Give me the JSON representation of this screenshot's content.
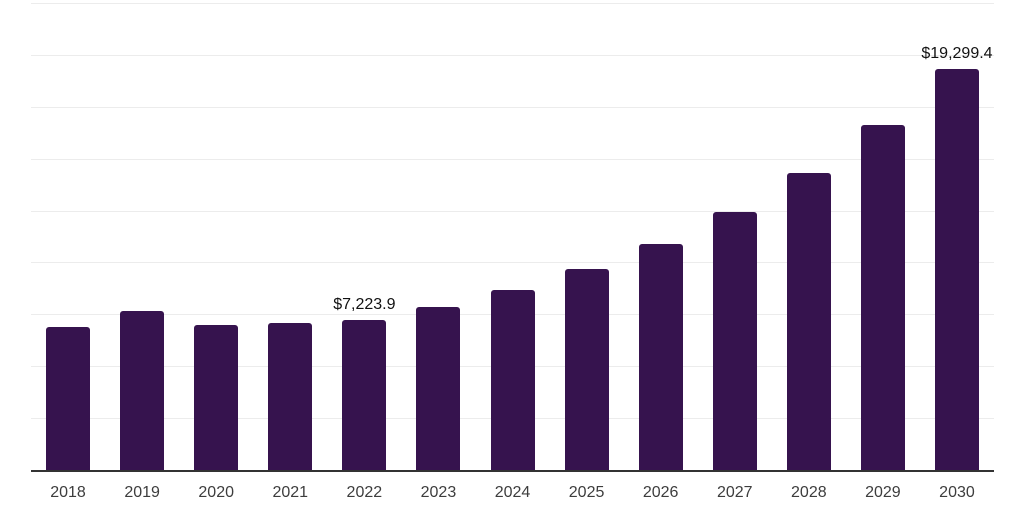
{
  "chart_data": {
    "type": "bar",
    "title": "",
    "xlabel": "",
    "ylabel": "",
    "categories": [
      "2018",
      "2019",
      "2020",
      "2021",
      "2022",
      "2023",
      "2024",
      "2025",
      "2026",
      "2027",
      "2028",
      "2029",
      "2030"
    ],
    "values": [
      6900,
      7650,
      7000,
      7080,
      7223.9,
      7870,
      8670,
      9680,
      10890,
      12420,
      14320,
      16620,
      19299.4
    ],
    "point_labels": [
      "",
      "",
      "",
      "",
      "$7,223.9",
      "",
      "",
      "",
      "",
      "",
      "",
      "",
      "$19,299.4"
    ],
    "ylim": [
      0,
      22500
    ],
    "gridline_interval": 2500,
    "grid": "horizontal-only",
    "legend": "none",
    "y_axis_tick_labels_visible": false,
    "colors": {
      "bar": "#36134E",
      "gridline": "#ececec",
      "axis_line": "#333333",
      "x_tick_label": "#3d3d3d",
      "value_label": "#111111",
      "background": "#ffffff"
    }
  }
}
